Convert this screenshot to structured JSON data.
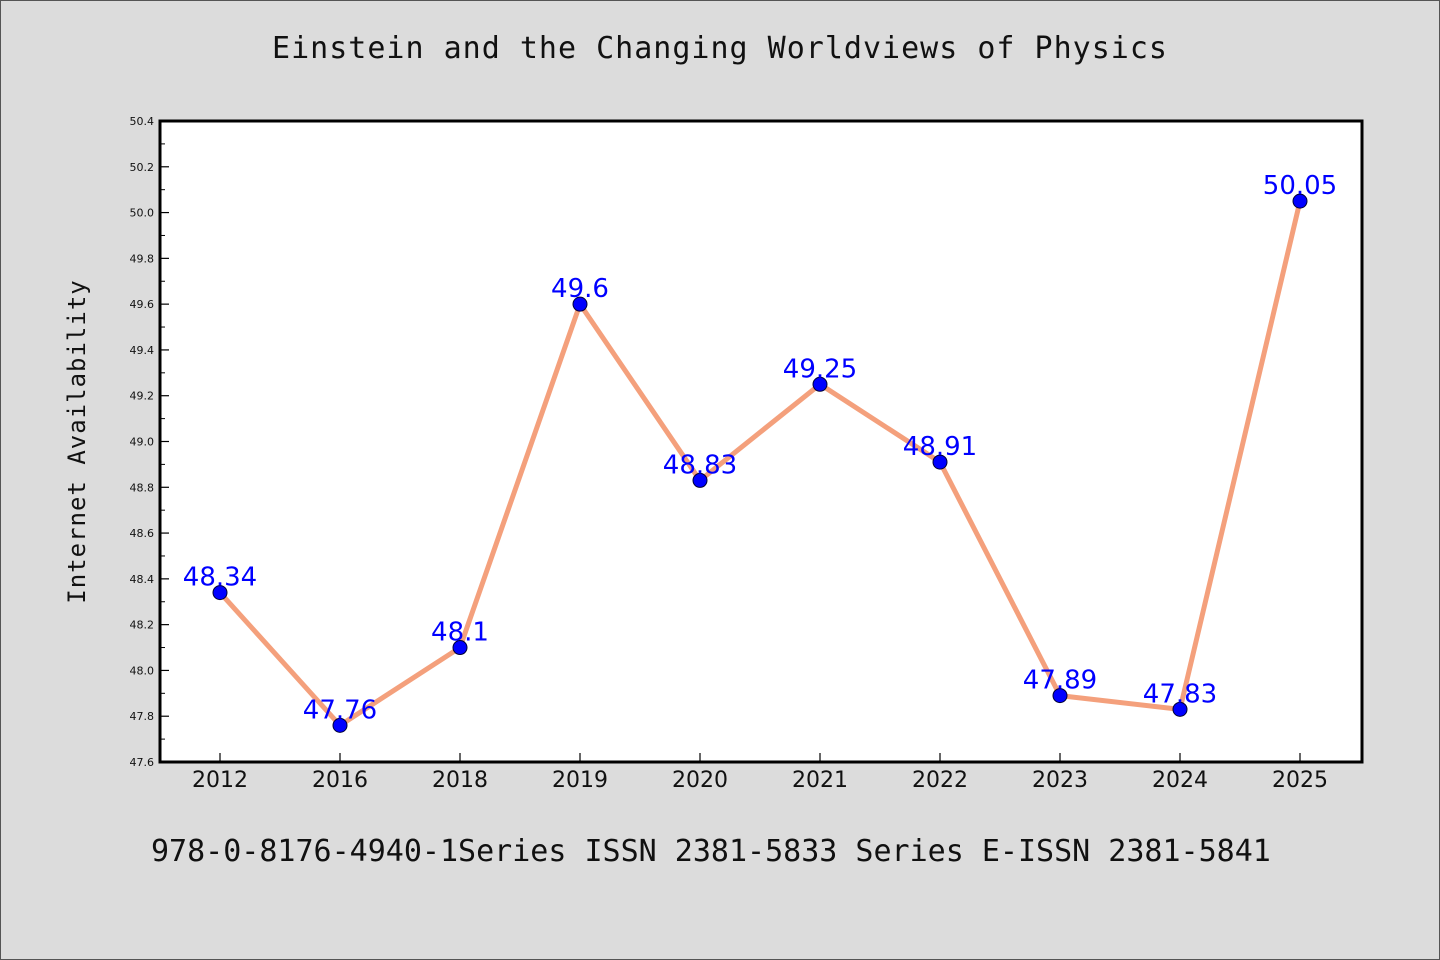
{
  "chart_data": {
    "type": "line",
    "title": "Einstein and the Changing Worldviews of Physics",
    "xlabel": "",
    "ylabel": "Internet Availability",
    "categories": [
      "2012",
      "2016",
      "2018",
      "2019",
      "2020",
      "2021",
      "2022",
      "2023",
      "2024",
      "2025"
    ],
    "series": [
      {
        "values": [
          48.34,
          47.76,
          48.1,
          49.6,
          48.83,
          49.25,
          48.91,
          47.89,
          47.83,
          50.05
        ],
        "data_labels": [
          "48.34",
          "47.76",
          "48.1",
          "49.6",
          "48.83",
          "49.25",
          "48.91",
          "47.89",
          "47.83",
          "50.05"
        ]
      }
    ],
    "ylim": [
      47.6,
      50.4
    ],
    "yticks": [
      "47.6",
      "47.8",
      "48.0",
      "48.2",
      "48.4",
      "48.6",
      "48.8",
      "49.0",
      "49.2",
      "49.4",
      "49.6",
      "49.8",
      "50.0",
      "50.2",
      "50.4"
    ],
    "grid": false,
    "colors": {
      "line": "#f4a07c",
      "marker": "#0000ff",
      "label": "#0000ff",
      "background": "#dcdcdc",
      "plot_background": "#ffffff"
    }
  },
  "footer": {
    "text": "978-0-8176-4940-1Series ISSN 2381-5833 Series E-ISSN 2381-5841"
  }
}
